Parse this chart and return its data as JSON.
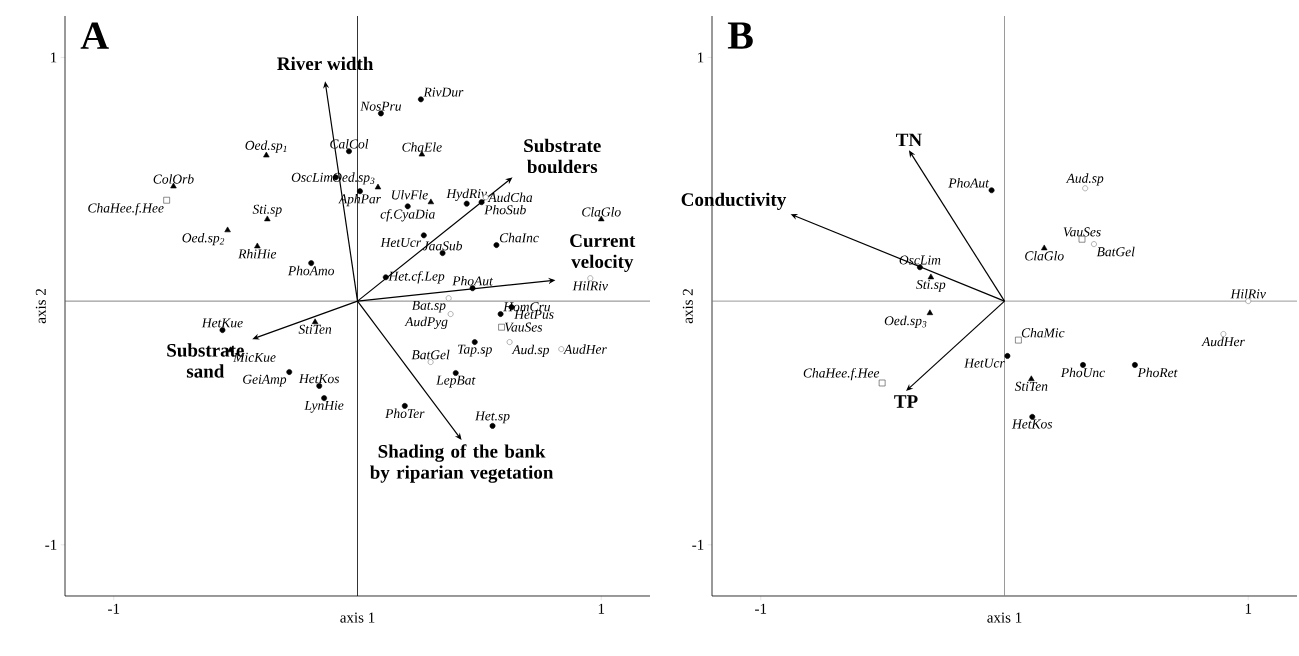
{
  "chart_data": [
    {
      "type": "scatter",
      "title": "A",
      "xlabel": "axis 1",
      "ylabel": "axis 2",
      "xlim": [
        -1.2,
        1.2
      ],
      "ylim": [
        -1.21,
        1.17
      ],
      "xticks": [
        -1,
        1
      ],
      "yticks": [
        -1,
        1
      ],
      "ref_lines": [
        {
          "axis": "x",
          "value": 0,
          "color": "#000000"
        },
        {
          "axis": "y",
          "value": 0,
          "color": "#666666"
        }
      ],
      "series": [
        {
          "marker": "circle",
          "color": "#000000",
          "x": [
            -0.089,
            -0.035,
            0.096,
            0.26,
            0.01,
            0.206,
            0.448,
            0.509,
            0.272,
            0.349,
            0.57,
            -0.19,
            0.116,
            0.472,
            0.587,
            0.632,
            0.481,
            0.403,
            0.194,
            0.554,
            -0.554,
            -0.28,
            -0.157,
            -0.137
          ],
          "values": [
            0.508,
            0.615,
            0.77,
            0.828,
            0.451,
            0.389,
            0.4,
            0.406,
            0.27,
            0.197,
            0.23,
            0.156,
            0.098,
            0.053,
            -0.053,
            -0.025,
            -0.168,
            -0.295,
            -0.43,
            -0.512,
            -0.119,
            -0.291,
            -0.348,
            -0.398
          ]
        },
        {
          "marker": "triangle",
          "color": "#000000",
          "x": [
            -0.755,
            -0.374,
            -0.37,
            -0.533,
            -0.411,
            0.264,
            0.084,
            0.301,
            1.0,
            -0.521,
            -0.174
          ],
          "values": [
            0.471,
            0.598,
            0.336,
            0.291,
            0.225,
            0.602,
            0.467,
            0.406,
            0.336,
            -0.201,
            -0.086
          ]
        },
        {
          "marker": "circle",
          "color": "#808080",
          "x": [
            0.526,
            0.955,
            0.374,
            0.382,
            0.624,
            0.836,
            0.3
          ],
          "values": [
            0.426,
            0.094,
            0.012,
            -0.053,
            -0.168,
            -0.197,
            -0.25
          ]
        },
        {
          "marker": "square",
          "color": "#404040",
          "x": [
            -0.783,
            0.591
          ],
          "values": [
            0.414,
            -0.107
          ]
        }
      ],
      "annotations": [
        "River width",
        "Substrate boulders",
        "Current velocity",
        "Substrate sand",
        "Shading of the bank by riparian vegetation",
        {
          "text": "ColOrb",
          "x": -0.755,
          "y": 0.471
        },
        {
          "text": "ChaHee.f.Hee",
          "x": -0.783,
          "y": 0.414
        },
        {
          "text": "Oed.sp$_{1}$",
          "x": -0.374,
          "y": 0.598
        },
        {
          "text": "Sti.sp",
          "x": -0.37,
          "y": 0.336
        },
        {
          "text": "Oed.sp$_{2}$",
          "x": -0.533,
          "y": 0.291
        },
        {
          "text": "RhiHie",
          "x": -0.411,
          "y": 0.225
        },
        {
          "text": "OscLim",
          "x": -0.089,
          "y": 0.508
        },
        {
          "text": "CalCol",
          "x": -0.035,
          "y": 0.615
        },
        {
          "text": "NosPru",
          "x": 0.096,
          "y": 0.77
        },
        {
          "text": "RivDur",
          "x": 0.26,
          "y": 0.828
        },
        {
          "text": "ChaEle",
          "x": 0.264,
          "y": 0.602
        },
        {
          "text": "Oed.sp$_{3}$",
          "x": 0.084,
          "y": 0.467
        },
        {
          "text": "AphPar",
          "x": 0.01,
          "y": 0.451
        },
        {
          "text": "UlvFle",
          "x": 0.301,
          "y": 0.406
        },
        {
          "text": "cf.CyaDia",
          "x": 0.206,
          "y": 0.389
        },
        {
          "text": "HydRiv",
          "x": 0.448,
          "y": 0.4
        },
        {
          "text": "AudCha",
          "x": 0.526,
          "y": 0.426
        },
        {
          "text": "PhoSub",
          "x": 0.509,
          "y": 0.406
        },
        {
          "text": "HetUcr",
          "x": 0.272,
          "y": 0.27
        },
        {
          "text": "JaaSub",
          "x": 0.349,
          "y": 0.197
        },
        {
          "text": "ChaInc",
          "x": 0.57,
          "y": 0.23
        },
        {
          "text": "PhoAmo",
          "x": -0.19,
          "y": 0.156
        },
        {
          "text": "Het.cf.Lep",
          "x": 0.116,
          "y": 0.098
        },
        {
          "text": "PhoAut",
          "x": 0.472,
          "y": 0.053
        },
        {
          "text": "HilRiv",
          "x": 0.955,
          "y": 0.094
        },
        {
          "text": "ClaGlo",
          "x": 1.0,
          "y": 0.336
        },
        {
          "text": "HomCru",
          "x": 0.587,
          "y": -0.053
        },
        {
          "text": "HetPus",
          "x": 0.632,
          "y": -0.025
        },
        {
          "text": "Bat.sp",
          "x": 0.374,
          "y": 0.012
        },
        {
          "text": "AudPyg",
          "x": 0.382,
          "y": -0.053
        },
        {
          "text": "VauSes",
          "x": 0.591,
          "y": -0.107
        },
        {
          "text": "Aud.sp",
          "x": 0.624,
          "y": -0.168
        },
        {
          "text": "AudHer",
          "x": 0.836,
          "y": -0.197
        },
        {
          "text": "Tap.sp",
          "x": 0.481,
          "y": -0.168
        },
        {
          "text": "BatGel",
          "x": 0.3,
          "y": -0.25
        },
        {
          "text": "LepBat",
          "x": 0.403,
          "y": -0.295
        },
        {
          "text": "PhoTer",
          "x": 0.194,
          "y": -0.43
        },
        {
          "text": "Het.sp",
          "x": 0.554,
          "y": -0.512
        },
        {
          "text": "HetKue",
          "x": -0.554,
          "y": -0.119
        },
        {
          "text": "MicKue",
          "x": -0.521,
          "y": -0.201
        },
        {
          "text": "StiTen",
          "x": -0.174,
          "y": -0.086
        },
        {
          "text": "GeiAmp",
          "x": -0.28,
          "y": -0.291
        },
        {
          "text": "HetKos",
          "x": -0.157,
          "y": -0.348
        },
        {
          "text": "LynHie",
          "x": -0.137,
          "y": -0.398
        }
      ]
    },
    {
      "type": "scatter",
      "title": "B",
      "xlabel": "axis 1",
      "ylabel": "axis 2",
      "xlim": [
        -1.2,
        1.2
      ],
      "ylim": [
        -1.21,
        1.17
      ],
      "xticks": [
        -1,
        1
      ],
      "yticks": [
        -1,
        1
      ],
      "ref_lines": [
        {
          "axis": "x",
          "value": 0,
          "color": "#808080"
        },
        {
          "axis": "y",
          "value": 0,
          "color": "#808080"
        }
      ],
      "series": [
        {
          "marker": "circle",
          "color": "#000000",
          "x": [
            -0.053,
            -0.347,
            0.012,
            0.322,
            0.535,
            0.114
          ],
          "values": [
            0.455,
            0.139,
            -0.225,
            -0.262,
            -0.262,
            -0.475
          ]
        },
        {
          "marker": "triangle",
          "color": "#000000",
          "x": [
            0.163,
            -0.302,
            -0.306,
            0.11
          ],
          "values": [
            0.217,
            0.098,
            -0.049,
            -0.32
          ]
        },
        {
          "marker": "circle",
          "color": "#808080",
          "x": [
            0.331,
            0.367,
            1.0,
            0.898
          ],
          "values": [
            0.463,
            0.234,
            0.0,
            -0.135
          ]
        },
        {
          "marker": "square",
          "color": "#404040",
          "x": [
            0.318,
            0.057,
            -0.502
          ],
          "values": [
            0.254,
            -0.16,
            -0.336
          ]
        }
      ],
      "annotations": [
        "TN",
        "Conductivity",
        "TP",
        {
          "text": "PhoAut",
          "x": -0.053,
          "y": 0.455
        },
        {
          "text": "Aud.sp",
          "x": 0.331,
          "y": 0.463
        },
        {
          "text": "VauSes",
          "x": 0.318,
          "y": 0.254
        },
        {
          "text": "BatGel",
          "x": 0.367,
          "y": 0.234
        },
        {
          "text": "ClaGlo",
          "x": 0.163,
          "y": 0.217
        },
        {
          "text": "OscLim",
          "x": -0.347,
          "y": 0.139
        },
        {
          "text": "Sti.sp",
          "x": -0.302,
          "y": 0.098
        },
        {
          "text": "Oed.sp$_{3}$",
          "x": -0.306,
          "y": -0.049
        },
        {
          "text": "ChaMic",
          "x": 0.057,
          "y": -0.16
        },
        {
          "text": "HetUcr",
          "x": 0.012,
          "y": -0.225
        },
        {
          "text": "ChaHee.f.Hee",
          "x": -0.502,
          "y": -0.336
        },
        {
          "text": "StiTen",
          "x": 0.11,
          "y": -0.32
        },
        {
          "text": "PhoUnc",
          "x": 0.322,
          "y": -0.262
        },
        {
          "text": "PhoRet",
          "x": 0.535,
          "y": -0.262
        },
        {
          "text": "HetKos",
          "x": 0.114,
          "y": -0.475
        },
        {
          "text": "AudHer",
          "x": 0.898,
          "y": -0.135
        },
        {
          "text": "HilRiv",
          "x": 1.0,
          "y": 0.0
        }
      ]
    }
  ]
}
